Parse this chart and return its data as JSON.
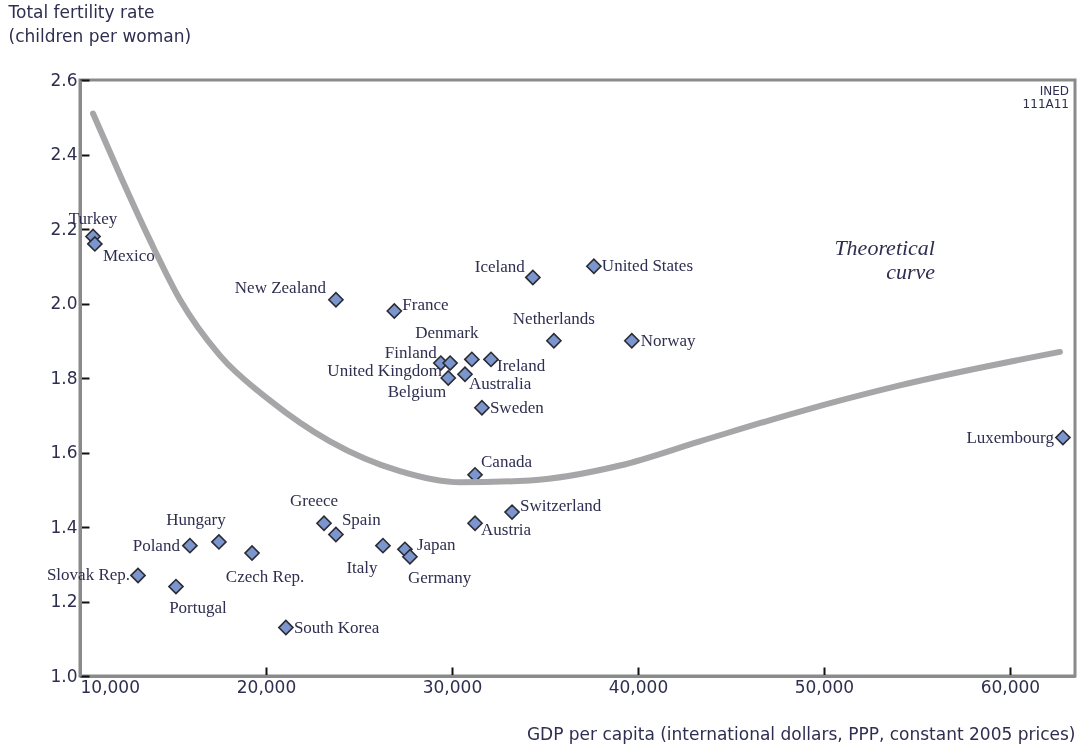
{
  "chart_data": {
    "type": "scatter",
    "xlabel": "GDP per capita (international dollars, PPP, constant 2005 prices)",
    "ylabel": "Total fertility rate (children per woman)",
    "xlim": [
      10000,
      63500
    ],
    "ylim": [
      1.0,
      2.6
    ],
    "xticks": [
      {
        "value": 10000,
        "label": "10,000"
      },
      {
        "value": 20000,
        "label": "20,000"
      },
      {
        "value": 30000,
        "label": "30,000"
      },
      {
        "value": 40000,
        "label": "40,000"
      },
      {
        "value": 50000,
        "label": "50,000"
      },
      {
        "value": 60000,
        "label": "60,000"
      }
    ],
    "yticks": [
      {
        "value": 1.0,
        "label": "1.0"
      },
      {
        "value": 1.2,
        "label": "1.2"
      },
      {
        "value": 1.4,
        "label": "1.4"
      },
      {
        "value": 1.6,
        "label": "1.6"
      },
      {
        "value": 1.8,
        "label": "1.8"
      },
      {
        "value": 2.0,
        "label": "2.0"
      },
      {
        "value": 2.2,
        "label": "2.2"
      },
      {
        "value": 2.4,
        "label": "2.4"
      },
      {
        "value": 2.6,
        "label": "2.6"
      }
    ],
    "grid": false,
    "annotations": [
      "INED 111A11",
      "Theoretical curve"
    ],
    "series": [
      {
        "marker": "diamond",
        "color": "#7b96cc",
        "x": [
          10700,
          10800,
          23760,
          26900,
          34350,
          37630,
          35480,
          39670,
          29400,
          29900,
          31070,
          32100,
          29800,
          30700,
          31610,
          31240,
          33230,
          31240,
          62850,
          23120,
          23760,
          26290,
          27470,
          27740,
          15910,
          17470,
          19250,
          13120,
          15160,
          21070
        ],
        "values": [
          2.18,
          2.16,
          2.01,
          1.98,
          2.07,
          2.1,
          1.9,
          1.9,
          1.84,
          1.84,
          1.85,
          1.85,
          1.8,
          1.81,
          1.72,
          1.54,
          1.44,
          1.41,
          1.64,
          1.41,
          1.38,
          1.35,
          1.34,
          1.32,
          1.35,
          1.36,
          1.33,
          1.27,
          1.24,
          1.13
        ],
        "value_labels": [
          "Turkey",
          "Mexico",
          "New Zealand",
          "France",
          "Iceland",
          "United States",
          "Netherlands",
          "Norway",
          "Finland",
          "United Kingdom",
          "Denmark",
          "Ireland",
          "Belgium",
          "Australia",
          "Sweden",
          "Canada",
          "Switzerland",
          "Austria",
          "Luxembourg",
          "Greece",
          "Spain",
          "Italy",
          "Japan",
          "Germany",
          "Poland",
          "Hungary",
          "Czech Rep.",
          "Slovak Rep.",
          "Portugal",
          "South Korea"
        ]
      },
      {
        "type": "line",
        "color": "#a6a6a8",
        "x": [
          10700,
          12150,
          13760,
          15380,
          17530,
          20210,
          23440,
          27200,
          30430,
          34190,
          39030,
          43330,
          48710,
          54080,
          62690
        ],
        "values": [
          2.51,
          2.345,
          2.17,
          2.01,
          1.86,
          1.74,
          1.63,
          1.55,
          1.52,
          1.525,
          1.565,
          1.63,
          1.71,
          1.78,
          1.87
        ]
      }
    ]
  }
}
